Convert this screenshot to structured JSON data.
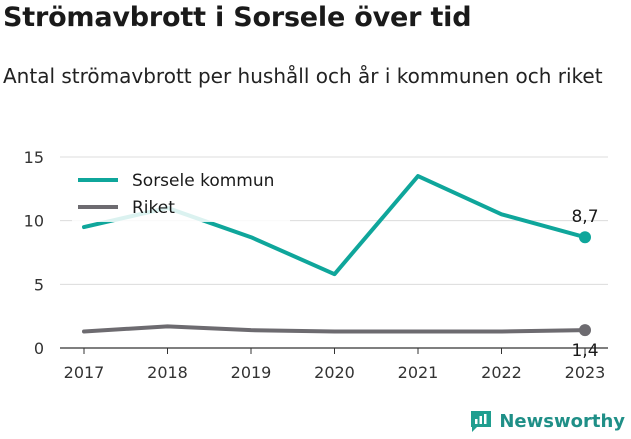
{
  "header": {
    "title": "Strömavbrott i Sorsele över tid",
    "subtitle": "Antal strömavbrott per hushåll och år i kommunen och riket"
  },
  "brand": {
    "name": "Newsworthy",
    "icon": "newsworthy-logo-icon",
    "color": "#1f9e8f"
  },
  "chart_data": {
    "type": "line",
    "categories": [
      "2017",
      "2018",
      "2019",
      "2020",
      "2021",
      "2022",
      "2023"
    ],
    "series": [
      {
        "name": "Sorsele kommun",
        "color": "#0fa69b",
        "values": [
          9.5,
          11.0,
          8.7,
          5.8,
          13.5,
          10.5,
          8.7
        ],
        "end_label": "8,7"
      },
      {
        "name": "Riket",
        "color": "#6d6b70",
        "values": [
          1.3,
          1.7,
          1.4,
          1.3,
          1.3,
          1.3,
          1.4
        ],
        "end_label": "1,4"
      }
    ],
    "ylim": [
      0,
      15
    ],
    "yticks": [
      "0",
      "5",
      "10",
      "15"
    ],
    "grid": true,
    "legend": "top-left",
    "xlabel": "",
    "ylabel": ""
  }
}
